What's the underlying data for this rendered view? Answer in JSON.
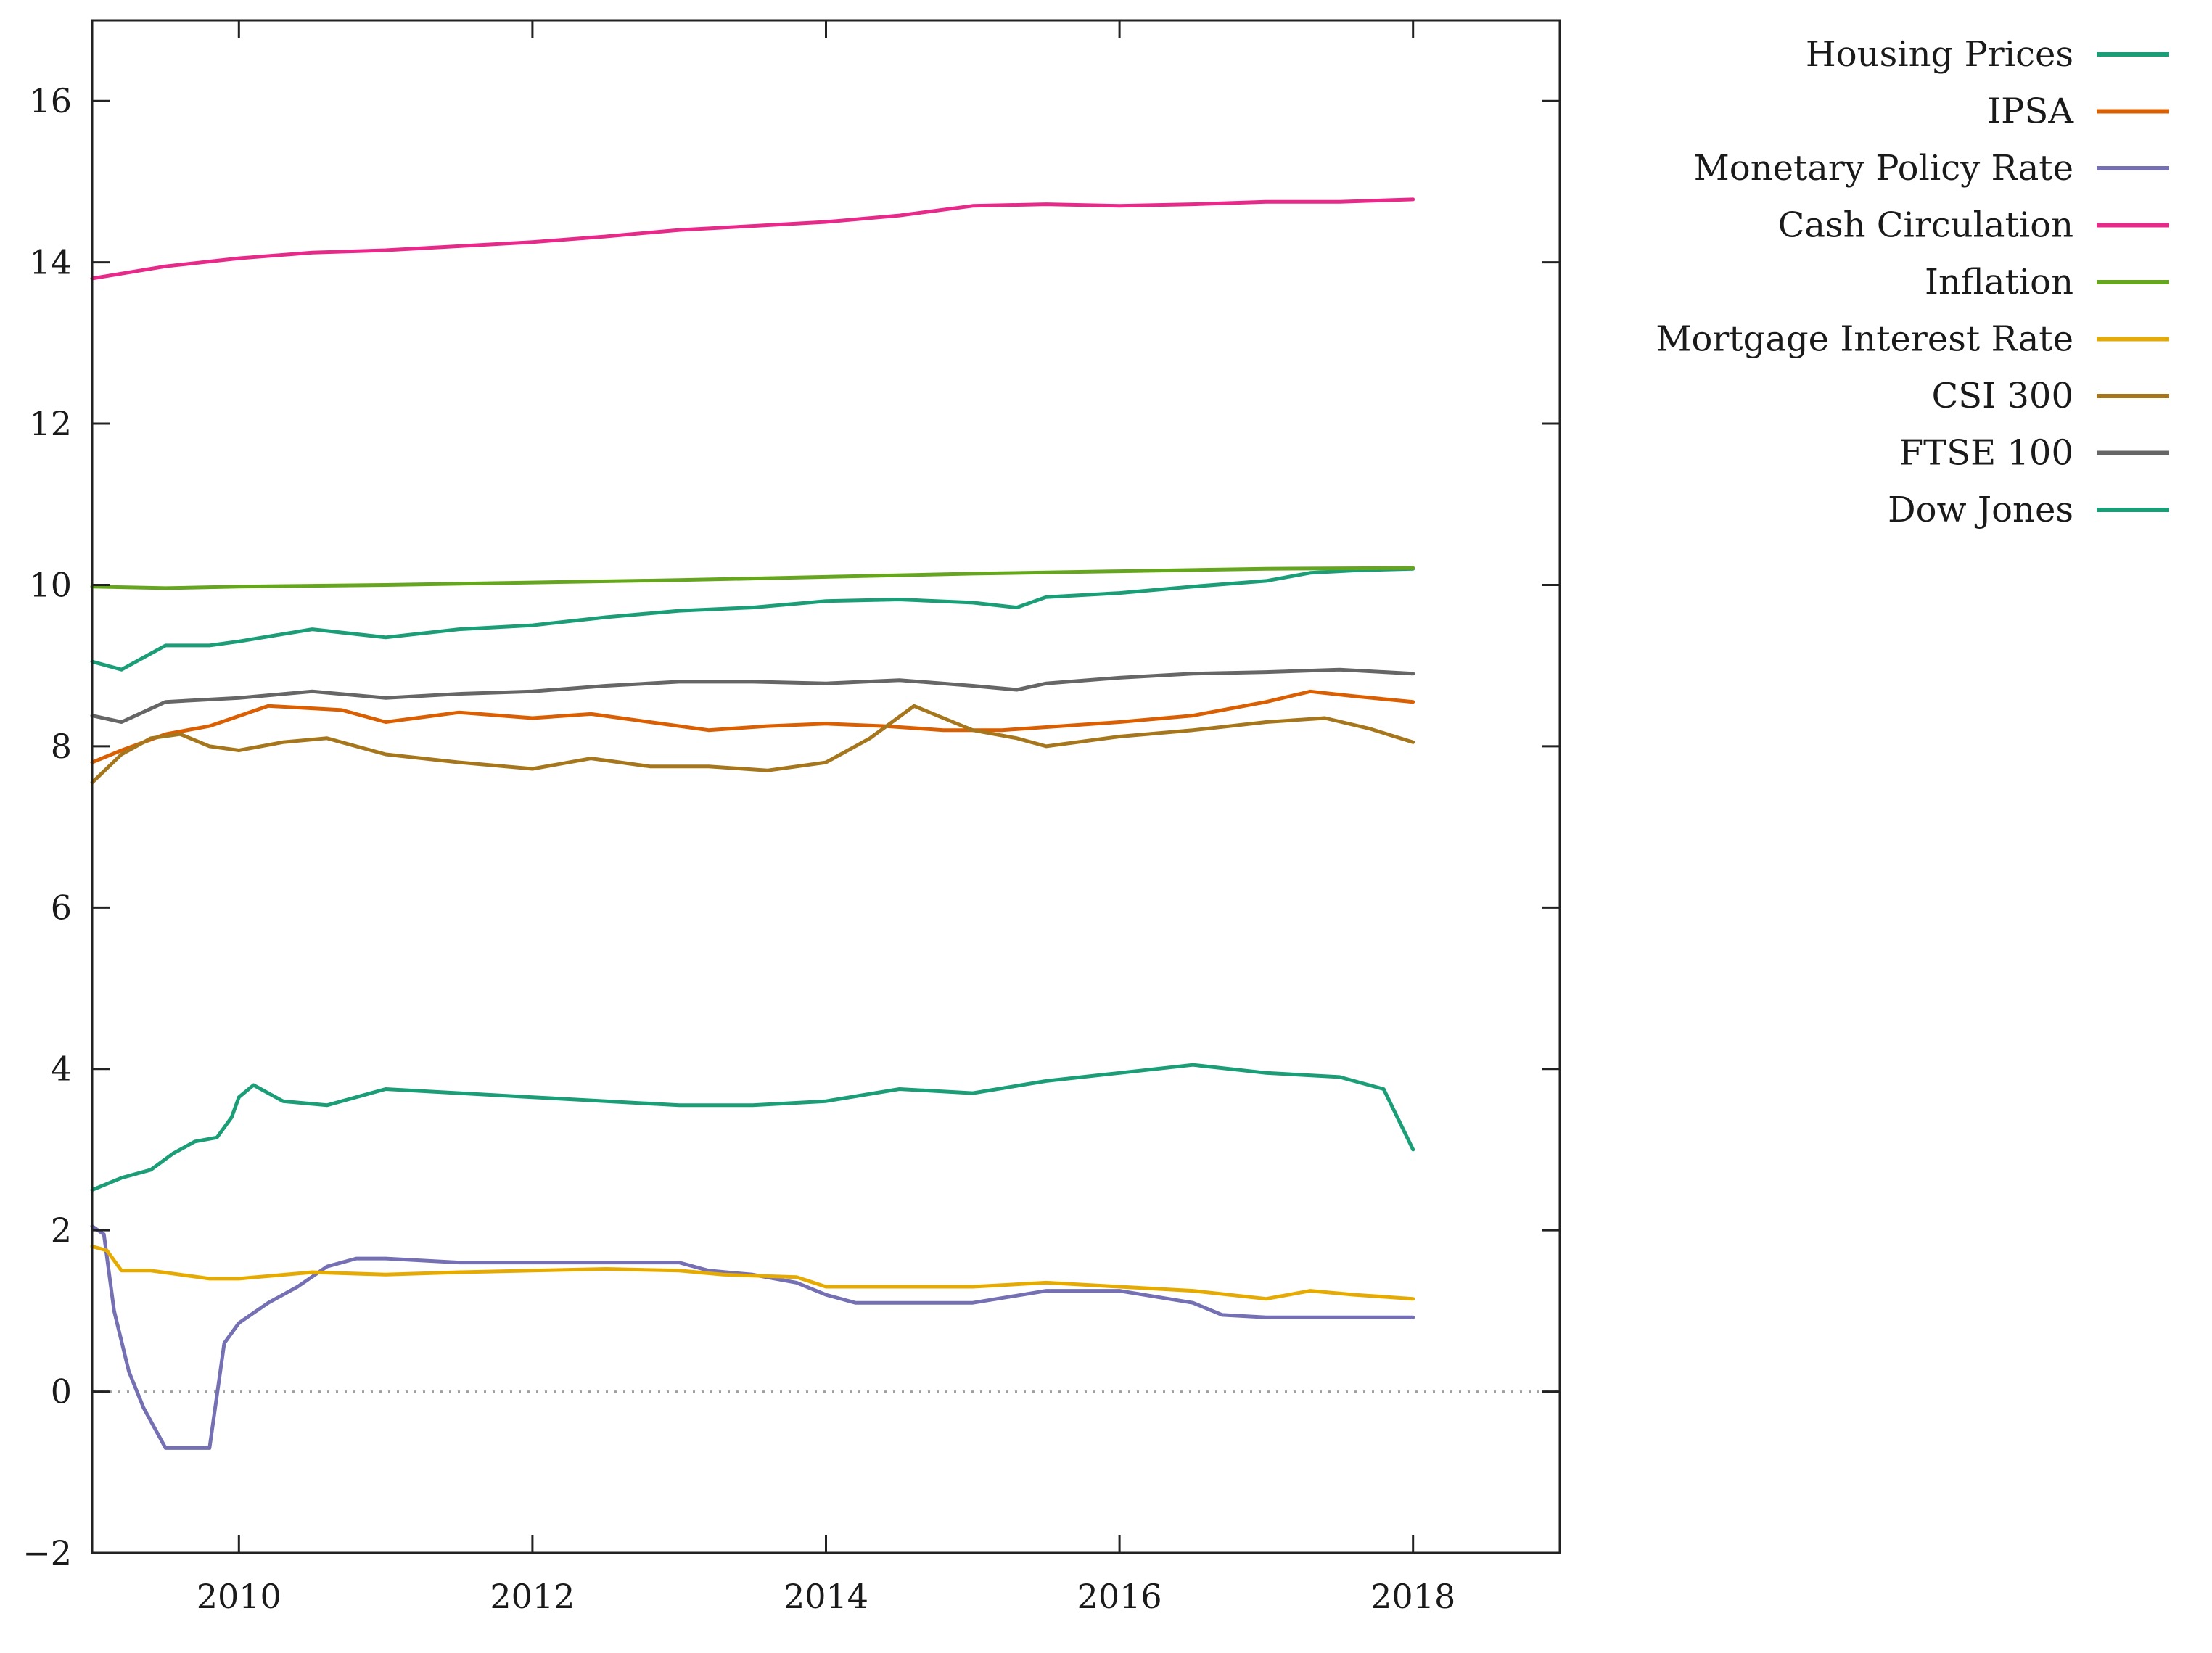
{
  "chart_data": {
    "type": "line",
    "title": "",
    "xlabel": "",
    "ylabel": "",
    "xlim": [
      2009,
      2019
    ],
    "ylim": [
      -2,
      17
    ],
    "grid": false,
    "legend_position": "top-right, outside plot",
    "x_ticks": [
      2010,
      2012,
      2014,
      2016,
      2018
    ],
    "x_tick_labels": [
      "2010",
      "2012",
      "2014",
      "2016",
      "2018"
    ],
    "y_ticks": [
      -2,
      0,
      2,
      4,
      6,
      8,
      10,
      12,
      14,
      16
    ],
    "y_tick_labels": [
      "−2",
      "0",
      "2",
      "4",
      "6",
      "8",
      "10",
      "12",
      "14",
      "16"
    ],
    "zero_line": {
      "y": 0,
      "style": "dotted",
      "color": "#a0a0a0"
    },
    "series": [
      {
        "name": "Housing Prices",
        "color": "#1b9e77",
        "x": [
          2009.0,
          2009.2,
          2009.5,
          2009.8,
          2010.0,
          2010.5,
          2011.0,
          2011.5,
          2012.0,
          2012.5,
          2013.0,
          2013.5,
          2014.0,
          2014.5,
          2015.0,
          2015.3,
          2015.5,
          2016.0,
          2016.5,
          2017.0,
          2017.3,
          2017.6,
          2018.0
        ],
        "values": [
          9.05,
          8.95,
          9.25,
          9.25,
          9.3,
          9.45,
          9.35,
          9.45,
          9.5,
          9.6,
          9.68,
          9.72,
          9.8,
          9.82,
          9.78,
          9.72,
          9.85,
          9.9,
          9.98,
          10.05,
          10.15,
          10.18,
          10.2
        ]
      },
      {
        "name": "IPSA",
        "color": "#d95f02",
        "x": [
          2009.0,
          2009.2,
          2009.5,
          2009.8,
          2010.2,
          2010.7,
          2011.0,
          2011.5,
          2012.0,
          2012.4,
          2012.8,
          2013.2,
          2013.6,
          2014.0,
          2014.4,
          2014.8,
          2015.2,
          2015.6,
          2016.0,
          2016.5,
          2017.0,
          2017.3,
          2017.6,
          2018.0
        ],
        "values": [
          7.8,
          7.95,
          8.15,
          8.25,
          8.5,
          8.45,
          8.3,
          8.42,
          8.35,
          8.4,
          8.3,
          8.2,
          8.25,
          8.28,
          8.25,
          8.2,
          8.2,
          8.25,
          8.3,
          8.38,
          8.55,
          8.68,
          8.62,
          8.55
        ]
      },
      {
        "name": "Monetary Policy Rate",
        "color": "#7570b3",
        "x": [
          2009.0,
          2009.08,
          2009.15,
          2009.25,
          2009.35,
          2009.5,
          2009.65,
          2009.8,
          2009.9,
          2010.0,
          2010.2,
          2010.4,
          2010.6,
          2010.8,
          2011.0,
          2011.5,
          2012.0,
          2012.5,
          2013.0,
          2013.2,
          2013.5,
          2013.8,
          2014.0,
          2014.2,
          2015.0,
          2015.5,
          2016.0,
          2016.5,
          2016.7,
          2017.0,
          2018.0
        ],
        "values": [
          2.05,
          1.95,
          1.0,
          0.25,
          -0.2,
          -0.7,
          -0.7,
          -0.7,
          0.6,
          0.85,
          1.1,
          1.3,
          1.55,
          1.65,
          1.65,
          1.6,
          1.6,
          1.6,
          1.6,
          1.5,
          1.45,
          1.35,
          1.2,
          1.1,
          1.1,
          1.25,
          1.25,
          1.1,
          0.95,
          0.92,
          0.92
        ]
      },
      {
        "name": "Cash Circulation",
        "color": "#e7298a",
        "x": [
          2009.0,
          2009.5,
          2010.0,
          2010.5,
          2011.0,
          2011.5,
          2012.0,
          2012.5,
          2013.0,
          2013.5,
          2014.0,
          2014.5,
          2015.0,
          2015.5,
          2016.0,
          2016.5,
          2017.0,
          2017.5,
          2018.0
        ],
        "values": [
          13.8,
          13.95,
          14.05,
          14.12,
          14.15,
          14.2,
          14.25,
          14.32,
          14.4,
          14.45,
          14.5,
          14.58,
          14.7,
          14.72,
          14.7,
          14.72,
          14.75,
          14.75,
          14.78
        ]
      },
      {
        "name": "Inflation",
        "color": "#66a61e",
        "x": [
          2009.0,
          2009.5,
          2010.0,
          2011.0,
          2012.0,
          2013.0,
          2014.0,
          2015.0,
          2016.0,
          2017.0,
          2018.0
        ],
        "values": [
          9.98,
          9.96,
          9.98,
          10.0,
          10.03,
          10.06,
          10.1,
          10.14,
          10.17,
          10.2,
          10.21
        ]
      },
      {
        "name": "Mortgage Interest Rate",
        "color": "#e6ab02",
        "x": [
          2009.0,
          2009.1,
          2009.2,
          2009.4,
          2009.6,
          2009.8,
          2010.0,
          2010.5,
          2011.0,
          2011.5,
          2012.0,
          2012.5,
          2013.0,
          2013.3,
          2013.8,
          2014.0,
          2014.5,
          2015.0,
          2015.5,
          2016.0,
          2016.5,
          2017.0,
          2017.3,
          2017.6,
          2018.0
        ],
        "values": [
          1.8,
          1.75,
          1.5,
          1.5,
          1.45,
          1.4,
          1.4,
          1.48,
          1.45,
          1.48,
          1.5,
          1.52,
          1.5,
          1.45,
          1.42,
          1.3,
          1.3,
          1.3,
          1.35,
          1.3,
          1.25,
          1.15,
          1.25,
          1.2,
          1.15
        ]
      },
      {
        "name": "CSI 300",
        "color": "#a6761d",
        "x": [
          2009.0,
          2009.2,
          2009.4,
          2009.6,
          2009.8,
          2010.0,
          2010.3,
          2010.6,
          2011.0,
          2011.5,
          2012.0,
          2012.4,
          2012.8,
          2013.2,
          2013.6,
          2014.0,
          2014.3,
          2014.6,
          2014.8,
          2015.0,
          2015.3,
          2015.5,
          2016.0,
          2016.5,
          2017.0,
          2017.4,
          2017.7,
          2018.0
        ],
        "values": [
          7.55,
          7.9,
          8.1,
          8.15,
          8.0,
          7.95,
          8.05,
          8.1,
          7.9,
          7.8,
          7.72,
          7.85,
          7.75,
          7.75,
          7.7,
          7.8,
          8.1,
          8.5,
          8.35,
          8.2,
          8.1,
          8.0,
          8.12,
          8.2,
          8.3,
          8.35,
          8.22,
          8.05
        ]
      },
      {
        "name": "FTSE 100",
        "color": "#666666",
        "x": [
          2009.0,
          2009.2,
          2009.5,
          2010.0,
          2010.5,
          2011.0,
          2011.5,
          2012.0,
          2012.5,
          2013.0,
          2013.5,
          2014.0,
          2014.5,
          2015.0,
          2015.3,
          2015.5,
          2016.0,
          2016.5,
          2017.0,
          2017.5,
          2018.0
        ],
        "values": [
          8.38,
          8.3,
          8.55,
          8.6,
          8.68,
          8.6,
          8.65,
          8.68,
          8.75,
          8.8,
          8.8,
          8.78,
          8.82,
          8.75,
          8.7,
          8.78,
          8.85,
          8.9,
          8.92,
          8.95,
          8.9
        ]
      },
      {
        "name": "Dow Jones",
        "color": "#1b9e77",
        "x": [
          2009.0,
          2009.2,
          2009.4,
          2009.55,
          2009.7,
          2009.85,
          2009.95,
          2010.0,
          2010.1,
          2010.3,
          2010.6,
          2011.0,
          2011.5,
          2012.0,
          2012.5,
          2013.0,
          2013.5,
          2014.0,
          2014.5,
          2015.0,
          2015.5,
          2016.0,
          2016.5,
          2017.0,
          2017.5,
          2017.8,
          2018.0
        ],
        "values": [
          2.5,
          2.65,
          2.75,
          2.95,
          3.1,
          3.15,
          3.4,
          3.65,
          3.8,
          3.6,
          3.55,
          3.75,
          3.7,
          3.65,
          3.6,
          3.55,
          3.55,
          3.6,
          3.75,
          3.7,
          3.85,
          3.95,
          4.05,
          3.95,
          3.9,
          3.75,
          3.0
        ]
      }
    ]
  }
}
